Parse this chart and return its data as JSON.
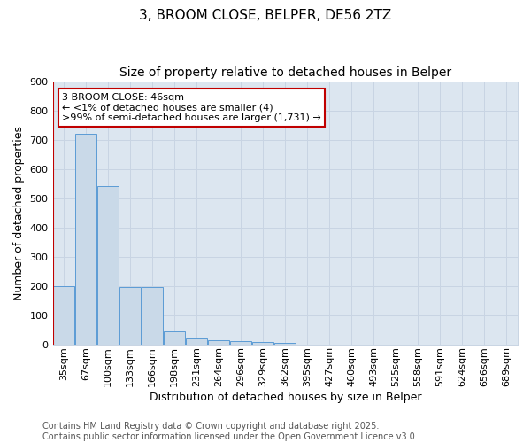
{
  "title1": "3, BROOM CLOSE, BELPER, DE56 2TZ",
  "title2": "Size of property relative to detached houses in Belper",
  "xlabel": "Distribution of detached houses by size in Belper",
  "ylabel": "Number of detached properties",
  "categories": [
    "35sqm",
    "67sqm",
    "100sqm",
    "133sqm",
    "166sqm",
    "198sqm",
    "231sqm",
    "264sqm",
    "296sqm",
    "329sqm",
    "362sqm",
    "395sqm",
    "427sqm",
    "460sqm",
    "493sqm",
    "525sqm",
    "558sqm",
    "591sqm",
    "624sqm",
    "656sqm",
    "689sqm"
  ],
  "values": [
    200,
    720,
    540,
    195,
    195,
    45,
    20,
    15,
    10,
    8,
    5,
    0,
    0,
    0,
    0,
    0,
    0,
    0,
    0,
    0,
    0
  ],
  "bar_color": "#c9d9e8",
  "bar_edge_color": "#5b9bd5",
  "highlight_line_color": "#c00000",
  "annotation_box_text": "3 BROOM CLOSE: 46sqm\n← <1% of detached houses are smaller (4)\n>99% of semi-detached houses are larger (1,731) →",
  "annotation_box_color": "#c00000",
  "annotation_box_facecolor": "white",
  "ylim": [
    0,
    900
  ],
  "yticks": [
    0,
    100,
    200,
    300,
    400,
    500,
    600,
    700,
    800,
    900
  ],
  "grid_color": "#c8d4e3",
  "bg_color": "#dce6f0",
  "footnote": "Contains HM Land Registry data © Crown copyright and database right 2025.\nContains public sector information licensed under the Open Government Licence v3.0.",
  "title1_fontsize": 11,
  "title2_fontsize": 10,
  "tick_fontsize": 8,
  "label_fontsize": 9,
  "annotation_fontsize": 8,
  "footnote_fontsize": 7
}
